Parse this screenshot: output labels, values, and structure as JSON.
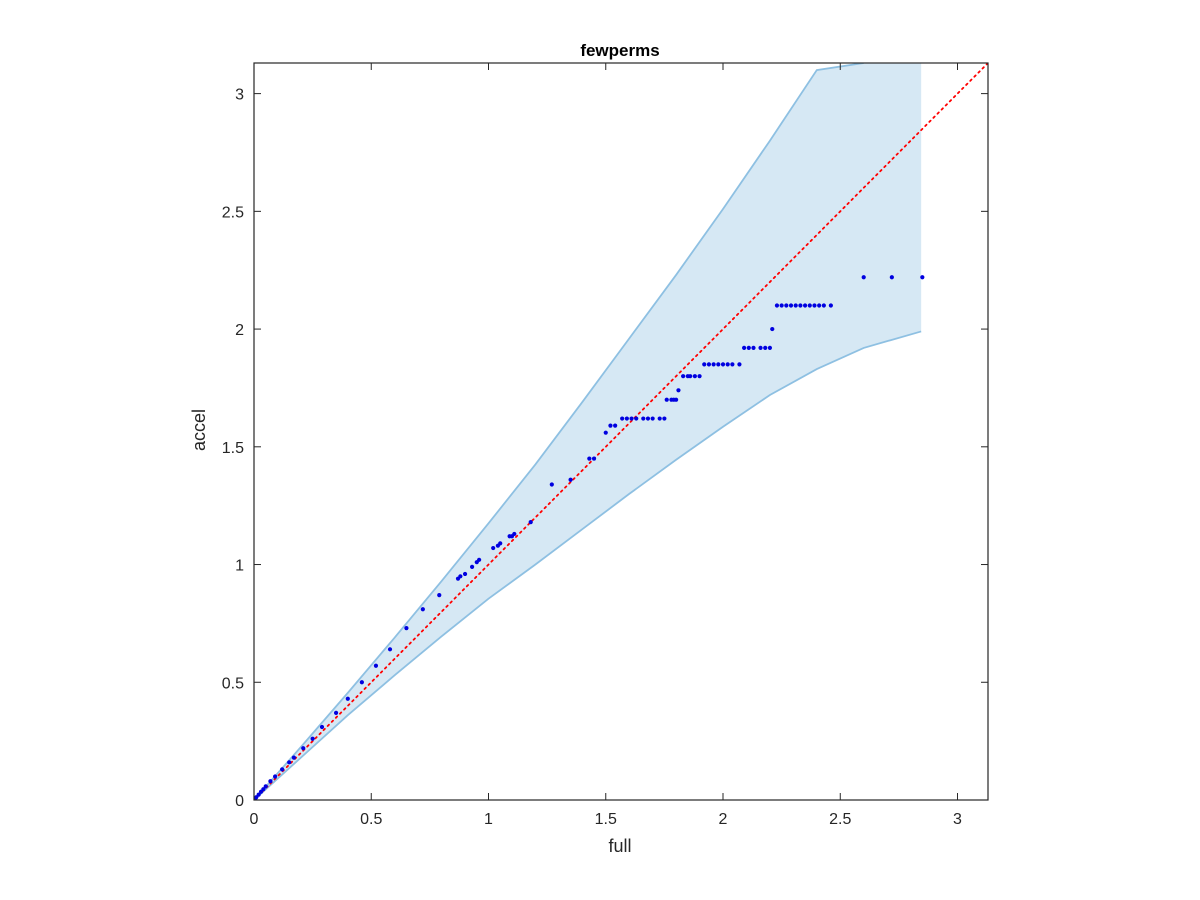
{
  "chart_data": {
    "type": "scatter",
    "title": "fewperms",
    "xlabel": "full",
    "ylabel": "accel",
    "xlim": [
      0,
      3.13
    ],
    "ylim": [
      0,
      3.13
    ],
    "x_ticks": [
      0,
      0.5,
      1,
      1.5,
      2,
      2.5,
      3
    ],
    "y_ticks": [
      0,
      0.5,
      1,
      1.5,
      2,
      2.5,
      3
    ],
    "x_tick_labels": [
      "0",
      "0.5",
      "1",
      "1.5",
      "2",
      "2.5",
      "3"
    ],
    "y_tick_labels": [
      "0",
      "0.5",
      "1",
      "1.5",
      "2",
      "2.5",
      "3"
    ],
    "grid": false,
    "colors": {
      "band_fill": "#d6e8f4",
      "band_edge": "#8ec0e2",
      "points": "#0000e0",
      "reference": "#ff0000",
      "axes": "#262626"
    },
    "reference_line": {
      "style": "dotted",
      "x": [
        0,
        3.13
      ],
      "y": [
        0,
        3.13
      ]
    },
    "confidence_band": {
      "upper": {
        "x": [
          0,
          0.2,
          0.4,
          0.6,
          0.8,
          1.0,
          1.2,
          1.4,
          1.6,
          1.8,
          2.0,
          2.2,
          2.4,
          2.6
        ],
        "y": [
          0,
          0.225,
          0.455,
          0.69,
          0.93,
          1.175,
          1.425,
          1.69,
          1.96,
          2.23,
          2.51,
          2.8,
          3.1,
          3.13
        ]
      },
      "lower": {
        "x": [
          0,
          0.2,
          0.4,
          0.6,
          0.8,
          1.0,
          1.2,
          1.4,
          1.6,
          1.8,
          2.0,
          2.2,
          2.4,
          2.6,
          2.845
        ],
        "y": [
          0,
          0.18,
          0.36,
          0.53,
          0.695,
          0.855,
          1.0,
          1.15,
          1.3,
          1.445,
          1.585,
          1.72,
          1.83,
          1.92,
          1.99
        ]
      },
      "right_edge_x": 2.845
    },
    "series": [
      {
        "x": [
          0.005,
          0.01,
          0.02,
          0.03,
          0.04,
          0.05,
          0.07,
          0.09,
          0.12,
          0.15,
          0.17,
          0.21,
          0.25,
          0.29,
          0.35,
          0.4,
          0.46,
          0.52,
          0.58,
          0.65,
          0.72,
          0.79,
          0.87,
          0.88,
          0.9,
          0.93,
          0.95,
          0.96,
          1.02,
          1.04,
          1.05,
          1.09,
          1.1,
          1.11,
          1.18,
          1.27,
          1.35,
          1.43,
          1.45,
          1.5,
          1.52,
          1.54,
          1.57,
          1.59,
          1.61,
          1.63,
          1.66,
          1.68,
          1.7,
          1.73,
          1.75,
          1.76,
          1.78,
          1.79,
          1.8,
          1.81,
          1.83,
          1.85,
          1.86,
          1.88,
          1.9,
          1.92,
          1.94,
          1.96,
          1.98,
          2.0,
          2.02,
          2.04,
          2.07,
          2.09,
          2.11,
          2.13,
          2.16,
          2.18,
          2.2,
          2.21,
          2.23,
          2.25,
          2.27,
          2.29,
          2.31,
          2.33,
          2.35,
          2.37,
          2.39,
          2.41,
          2.43,
          2.46,
          2.6,
          2.72,
          2.85
        ],
        "y": [
          0.005,
          0.012,
          0.023,
          0.035,
          0.046,
          0.058,
          0.08,
          0.1,
          0.13,
          0.16,
          0.18,
          0.22,
          0.26,
          0.31,
          0.37,
          0.43,
          0.5,
          0.57,
          0.64,
          0.73,
          0.81,
          0.87,
          0.94,
          0.95,
          0.96,
          0.99,
          1.01,
          1.02,
          1.07,
          1.08,
          1.09,
          1.12,
          1.12,
          1.13,
          1.18,
          1.34,
          1.36,
          1.45,
          1.45,
          1.56,
          1.59,
          1.59,
          1.62,
          1.62,
          1.62,
          1.62,
          1.62,
          1.62,
          1.62,
          1.62,
          1.62,
          1.7,
          1.7,
          1.7,
          1.7,
          1.74,
          1.8,
          1.8,
          1.8,
          1.8,
          1.8,
          1.85,
          1.85,
          1.85,
          1.85,
          1.85,
          1.85,
          1.85,
          1.85,
          1.92,
          1.92,
          1.92,
          1.92,
          1.92,
          1.92,
          2.0,
          2.1,
          2.1,
          2.1,
          2.1,
          2.1,
          2.1,
          2.1,
          2.1,
          2.1,
          2.1,
          2.1,
          2.1,
          2.22,
          2.22,
          2.22
        ]
      }
    ]
  }
}
